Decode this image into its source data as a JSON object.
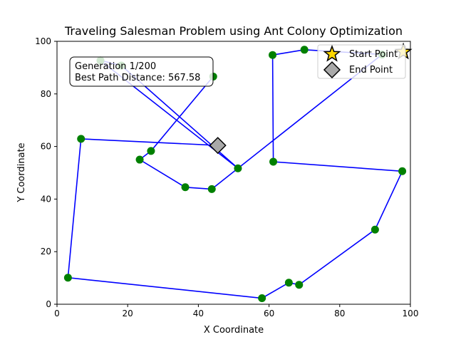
{
  "chart_data": {
    "type": "scatter",
    "title": "Traveling Salesman Problem using Ant Colony Optimization",
    "xlabel": "X Coordinate",
    "ylabel": "Y Coordinate",
    "xlim": [
      0,
      100
    ],
    "ylim": [
      0,
      100
    ],
    "xticks": [
      "0",
      "20",
      "40",
      "60",
      "80",
      "100"
    ],
    "yticks": [
      "0",
      "20",
      "40",
      "60",
      "80",
      "100"
    ],
    "grid": false,
    "info_box": {
      "line1": "Generation 1/200",
      "line2": "Best Path Distance: 567.58"
    },
    "legend": {
      "placement": "top-right",
      "entries": [
        "Start Point",
        "End Point"
      ]
    },
    "cities": [
      {
        "x": 12.3,
        "y": 92.7
      },
      {
        "x": 18.2,
        "y": 90.8
      },
      {
        "x": 44.2,
        "y": 86.6
      },
      {
        "x": 61.0,
        "y": 94.8
      },
      {
        "x": 70.0,
        "y": 96.8
      },
      {
        "x": 92.0,
        "y": 95.0
      },
      {
        "x": 6.8,
        "y": 62.9
      },
      {
        "x": 26.6,
        "y": 58.3
      },
      {
        "x": 23.4,
        "y": 55.0
      },
      {
        "x": 51.2,
        "y": 51.7
      },
      {
        "x": 61.2,
        "y": 54.2
      },
      {
        "x": 97.7,
        "y": 50.6
      },
      {
        "x": 36.3,
        "y": 44.5
      },
      {
        "x": 43.8,
        "y": 43.8
      },
      {
        "x": 90.0,
        "y": 28.4
      },
      {
        "x": 3.1,
        "y": 10.1
      },
      {
        "x": 65.6,
        "y": 8.2
      },
      {
        "x": 68.5,
        "y": 7.4
      },
      {
        "x": 58.0,
        "y": 2.3
      }
    ],
    "path": [
      {
        "x": 45.5,
        "y": 60.4
      },
      {
        "x": 6.8,
        "y": 62.9
      },
      {
        "x": 3.1,
        "y": 10.1
      },
      {
        "x": 58.0,
        "y": 2.3
      },
      {
        "x": 65.6,
        "y": 8.2
      },
      {
        "x": 68.5,
        "y": 7.4
      },
      {
        "x": 90.0,
        "y": 28.4
      },
      {
        "x": 97.7,
        "y": 50.6
      },
      {
        "x": 61.2,
        "y": 54.2
      },
      {
        "x": 61.0,
        "y": 94.8
      },
      {
        "x": 70.0,
        "y": 96.8
      },
      {
        "x": 92.0,
        "y": 95.0
      },
      {
        "x": 51.2,
        "y": 51.7
      },
      {
        "x": 12.3,
        "y": 92.7
      },
      {
        "x": 18.2,
        "y": 90.8
      },
      {
        "x": 51.2,
        "y": 51.7
      },
      {
        "x": 43.8,
        "y": 43.8
      },
      {
        "x": 36.3,
        "y": 44.5
      },
      {
        "x": 23.4,
        "y": 55.0
      },
      {
        "x": 26.6,
        "y": 58.3
      },
      {
        "x": 44.2,
        "y": 86.6
      }
    ],
    "start_point": {
      "x": 98.0,
      "y": 96.0
    },
    "end_point": {
      "x": 45.5,
      "y": 60.4
    },
    "colors": {
      "path": "#0000ff",
      "city": "#008000",
      "start_fill": "#ffd700",
      "end_fill": "#a9a9a9",
      "marker_edge": "#000000"
    }
  }
}
